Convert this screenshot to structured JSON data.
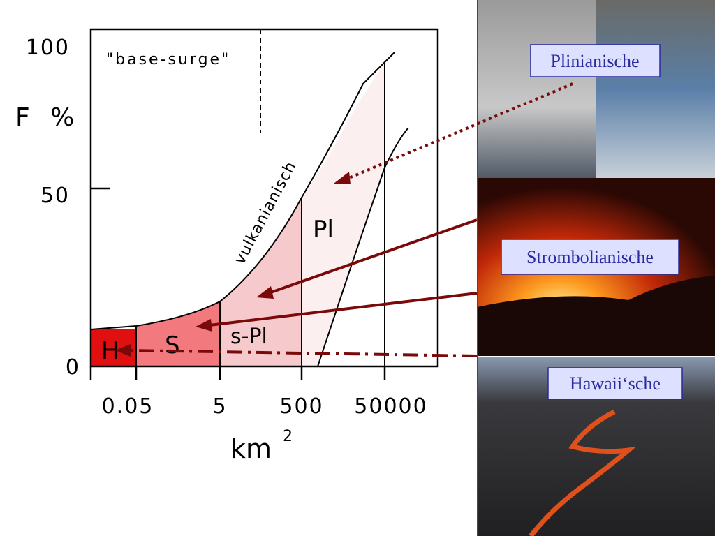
{
  "diagram": {
    "y_axis": {
      "label": "F %",
      "ticks": [
        "100",
        "50",
        "0"
      ]
    },
    "x_axis": {
      "label": "km",
      "superscript": "2",
      "ticks": [
        "0.05",
        "5",
        "500",
        "50000"
      ]
    },
    "annotations": [
      "\"base-surge\"",
      "vulkanianisch"
    ],
    "regions": [
      "H",
      "S",
      "s-Pl",
      "Pl"
    ],
    "photos": [
      "Plinianische",
      "Strombolianische",
      "Hawaii‘sche"
    ]
  }
}
